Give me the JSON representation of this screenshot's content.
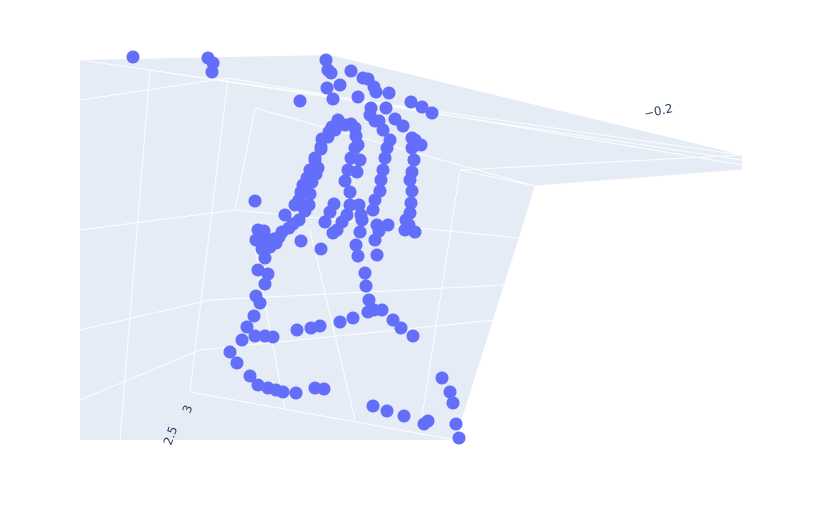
{
  "chart_data": {
    "type": "scatter",
    "projection": "3d",
    "marker_color": "#636efa",
    "pane_color": "#e5ecf6",
    "grid_color": "#ffffff",
    "grid": true,
    "title": "",
    "tick_labels": [
      {
        "axis": "z",
        "text": "3"
      },
      {
        "axis": "z",
        "text": "2.5"
      },
      {
        "axis": "x",
        "text": "−0.2"
      }
    ],
    "points": [
      [
        133,
        57
      ],
      [
        208,
        58
      ],
      [
        213,
        63
      ],
      [
        212,
        72
      ],
      [
        326,
        60
      ],
      [
        328,
        70
      ],
      [
        331,
        73
      ],
      [
        351,
        71
      ],
      [
        363,
        78
      ],
      [
        368,
        79
      ],
      [
        374,
        87
      ],
      [
        376,
        92
      ],
      [
        340,
        85
      ],
      [
        327,
        88
      ],
      [
        333,
        99
      ],
      [
        300,
        101
      ],
      [
        358,
        97
      ],
      [
        389,
        93
      ],
      [
        386,
        108
      ],
      [
        371,
        108
      ],
      [
        370,
        115
      ],
      [
        375,
        121
      ],
      [
        379,
        121
      ],
      [
        411,
        102
      ],
      [
        422,
        107
      ],
      [
        432,
        113
      ],
      [
        395,
        119
      ],
      [
        403,
        126
      ],
      [
        338,
        120
      ],
      [
        332,
        127
      ],
      [
        329,
        132
      ],
      [
        322,
        139
      ],
      [
        321,
        149
      ],
      [
        315,
        160
      ],
      [
        318,
        168
      ],
      [
        316,
        174
      ],
      [
        312,
        182
      ],
      [
        310,
        194
      ],
      [
        309,
        205
      ],
      [
        305,
        211
      ],
      [
        299,
        220
      ],
      [
        293,
        224
      ],
      [
        289,
        228
      ],
      [
        282,
        232
      ],
      [
        279,
        237
      ],
      [
        274,
        239
      ],
      [
        267,
        240
      ],
      [
        261,
        240
      ],
      [
        256,
        240
      ],
      [
        262,
        249
      ],
      [
        270,
        247
      ],
      [
        276,
        243
      ],
      [
        258,
        230
      ],
      [
        264,
        231
      ],
      [
        285,
        215
      ],
      [
        295,
        205
      ],
      [
        299,
        200
      ],
      [
        301,
        192
      ],
      [
        303,
        185
      ],
      [
        307,
        178
      ],
      [
        310,
        170
      ],
      [
        315,
        158
      ],
      [
        321,
        147
      ],
      [
        328,
        137
      ],
      [
        335,
        130
      ],
      [
        345,
        125
      ],
      [
        351,
        124
      ],
      [
        355,
        128
      ],
      [
        356,
        136
      ],
      [
        355,
        148
      ],
      [
        351,
        158
      ],
      [
        348,
        170
      ],
      [
        345,
        181
      ],
      [
        350,
        192
      ],
      [
        350,
        205
      ],
      [
        347,
        215
      ],
      [
        342,
        222
      ],
      [
        337,
        230
      ],
      [
        333,
        233
      ],
      [
        325,
        222
      ],
      [
        330,
        212
      ],
      [
        334,
        204
      ],
      [
        321,
        249
      ],
      [
        301,
        241
      ],
      [
        255,
        201
      ],
      [
        358,
        145
      ],
      [
        360,
        160
      ],
      [
        357,
        172
      ],
      [
        383,
        130
      ],
      [
        390,
        140
      ],
      [
        387,
        148
      ],
      [
        385,
        158
      ],
      [
        383,
        170
      ],
      [
        381,
        180
      ],
      [
        380,
        191
      ],
      [
        375,
        200
      ],
      [
        373,
        210
      ],
      [
        377,
        225
      ],
      [
        379,
        231
      ],
      [
        388,
        225
      ],
      [
        412,
        138
      ],
      [
        412,
        148
      ],
      [
        414,
        160
      ],
      [
        412,
        172
      ],
      [
        410,
        180
      ],
      [
        412,
        191
      ],
      [
        411,
        203
      ],
      [
        410,
        213
      ],
      [
        406,
        220
      ],
      [
        409,
        225
      ],
      [
        405,
        230
      ],
      [
        415,
        232
      ],
      [
        421,
        145
      ],
      [
        415,
        140
      ],
      [
        359,
        205
      ],
      [
        361,
        215
      ],
      [
        362,
        220
      ],
      [
        360,
        232
      ],
      [
        356,
        245
      ],
      [
        358,
        256
      ],
      [
        375,
        240
      ],
      [
        377,
        255
      ],
      [
        365,
        273
      ],
      [
        366,
        286
      ],
      [
        369,
        300
      ],
      [
        368,
        312
      ],
      [
        374,
        310
      ],
      [
        382,
        310
      ],
      [
        393,
        320
      ],
      [
        401,
        328
      ],
      [
        413,
        336
      ],
      [
        353,
        318
      ],
      [
        340,
        322
      ],
      [
        320,
        326
      ],
      [
        311,
        328
      ],
      [
        297,
        330
      ],
      [
        265,
        258
      ],
      [
        258,
        270
      ],
      [
        268,
        274
      ],
      [
        265,
        284
      ],
      [
        256,
        296
      ],
      [
        260,
        303
      ],
      [
        254,
        316
      ],
      [
        247,
        327
      ],
      [
        242,
        340
      ],
      [
        255,
        336
      ],
      [
        265,
        336
      ],
      [
        273,
        337
      ],
      [
        230,
        352
      ],
      [
        237,
        363
      ],
      [
        250,
        376
      ],
      [
        258,
        385
      ],
      [
        268,
        388
      ],
      [
        276,
        390
      ],
      [
        283,
        392
      ],
      [
        296,
        393
      ],
      [
        315,
        388
      ],
      [
        324,
        389
      ],
      [
        373,
        406
      ],
      [
        387,
        411
      ],
      [
        404,
        416
      ],
      [
        424,
        424
      ],
      [
        428,
        421
      ],
      [
        442,
        378
      ],
      [
        450,
        392
      ],
      [
        453,
        403
      ],
      [
        456,
        424
      ],
      [
        459,
        438
      ]
    ]
  }
}
